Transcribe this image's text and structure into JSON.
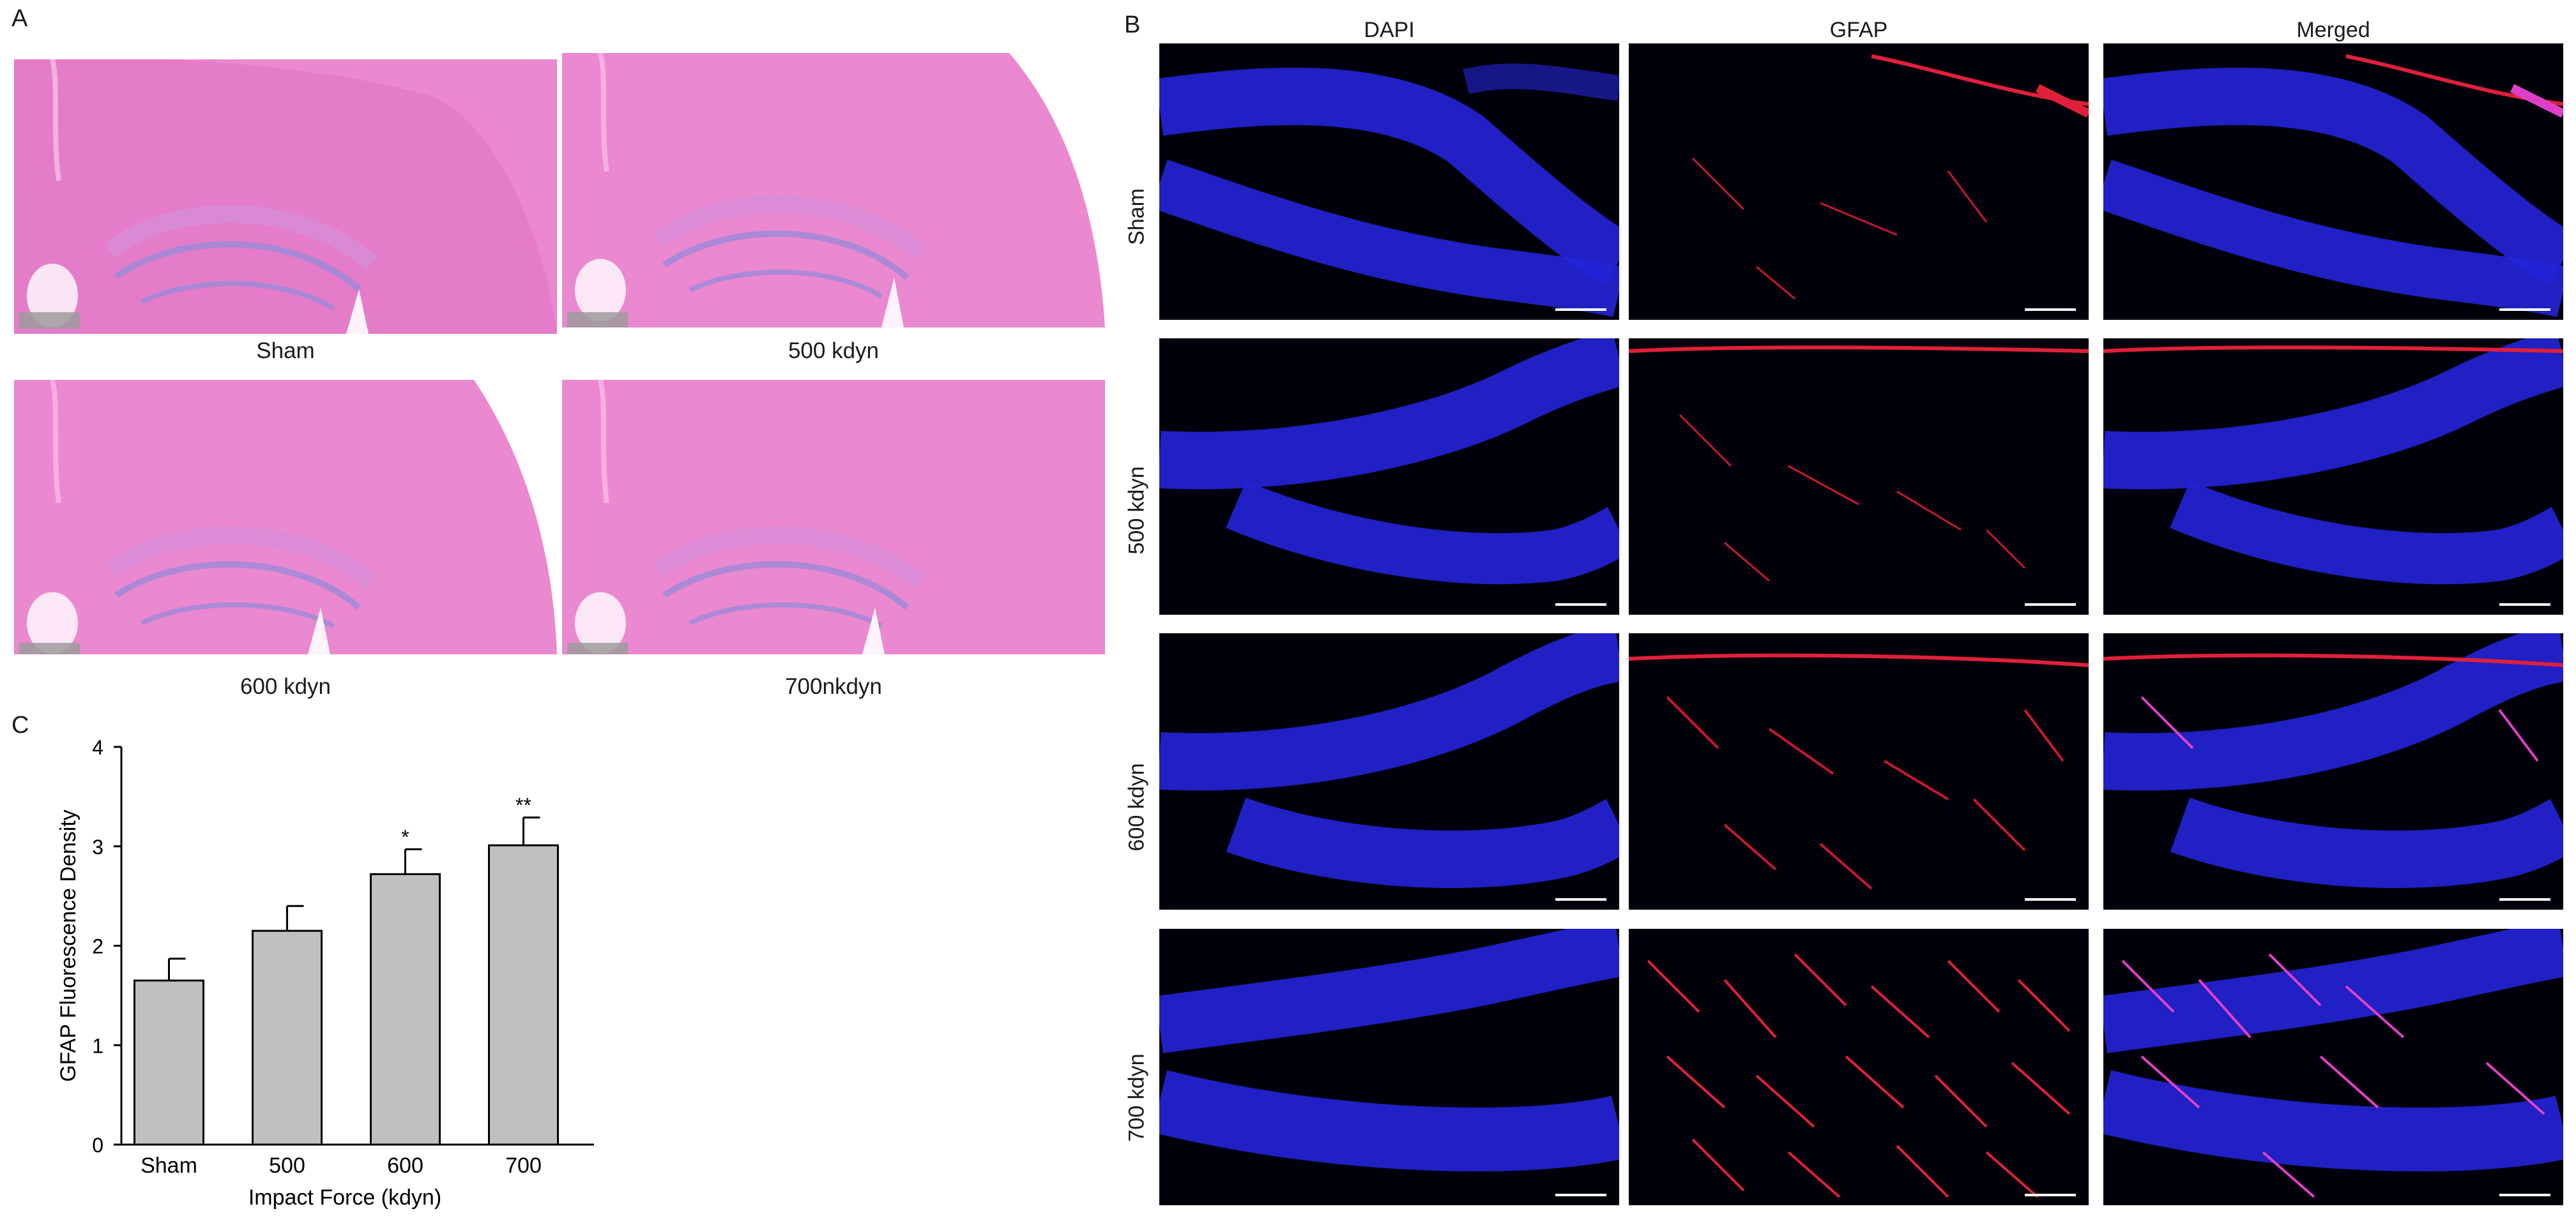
{
  "panel_A": {
    "letter": "A",
    "images": [
      {
        "label": "Sham"
      },
      {
        "label": "500 kdyn"
      },
      {
        "label": "600 kdyn"
      },
      {
        "label": "700nkdyn"
      }
    ]
  },
  "panel_B": {
    "letter": "B",
    "columns": [
      "DAPI",
      "GFAP",
      "Merged"
    ],
    "rows": [
      "Sham",
      "500 kdyn",
      "600 kdyn",
      "700 kdyn"
    ],
    "colors": {
      "dapi": "#2424d8",
      "gfap": "#e0203a",
      "background": "#00000a"
    }
  },
  "panel_C": {
    "letter": "C"
  },
  "chart_data": {
    "type": "bar",
    "categories": [
      "Sham",
      "500",
      "600",
      "700"
    ],
    "values": [
      1.65,
      2.15,
      2.72,
      3.01
    ],
    "errors": [
      0.22,
      0.25,
      0.25,
      0.28
    ],
    "significance": [
      "",
      "",
      "*",
      "**"
    ],
    "ylabel": "GFAP Fluorescence Density",
    "xlabel": "Impact Force (kdyn)",
    "ylim": [
      0,
      4
    ],
    "yticks": [
      "0",
      "1",
      "2",
      "3",
      "4"
    ],
    "bar_color": "#c0c0c0",
    "grid": false
  }
}
